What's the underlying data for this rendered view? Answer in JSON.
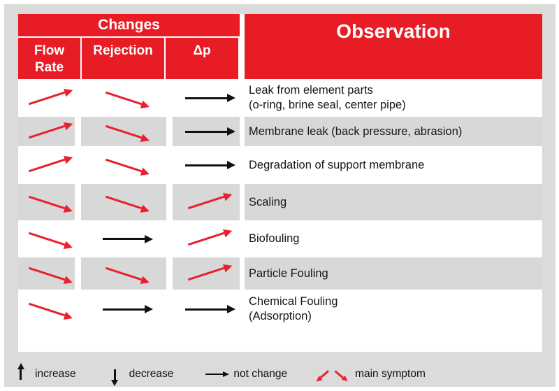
{
  "colors": {
    "header_red": "#e81c24",
    "arrow_red": "#e8212e",
    "arrow_black": "#111111",
    "row_gray": "#d8d8d8",
    "background_gray": "#dbdbdb"
  },
  "header": {
    "changes": "Changes",
    "observation": "Observation",
    "columns": [
      "Flow Rate",
      "Rejection",
      "Δp"
    ]
  },
  "rows": [
    {
      "arrows": [
        "increase",
        "decrease",
        "no-change"
      ],
      "observation": [
        "Leak from element parts",
        "(o-ring, brine seal, center pipe)"
      ]
    },
    {
      "arrows": [
        "increase",
        "decrease",
        "no-change"
      ],
      "observation": [
        "Membrane leak (back pressure, abrasion)"
      ]
    },
    {
      "arrows": [
        "increase",
        "decrease",
        "no-change"
      ],
      "observation": [
        "Degradation of support membrane"
      ]
    },
    {
      "arrows": [
        "decrease",
        "decrease",
        "increase"
      ],
      "observation": [
        "Scaling"
      ]
    },
    {
      "arrows": [
        "decrease",
        "no-change",
        "increase"
      ],
      "observation": [
        "Biofouling"
      ]
    },
    {
      "arrows": [
        "decrease",
        "decrease",
        "increase"
      ],
      "observation": [
        "Particle Fouling"
      ]
    },
    {
      "arrows": [
        "decrease",
        "no-change",
        "no-change"
      ],
      "observation": [
        "Chemical Fouling",
        "(Adsorption)"
      ]
    }
  ],
  "legend": {
    "items": [
      {
        "icon": "arrow-up-black-icon",
        "label": "increase"
      },
      {
        "icon": "arrow-down-black-icon",
        "label": "decrease"
      },
      {
        "icon": "arrow-right-black-icon",
        "label": "not change"
      },
      {
        "icon": "arrows-diagonal-red-icon",
        "label": "main symptom"
      }
    ]
  }
}
